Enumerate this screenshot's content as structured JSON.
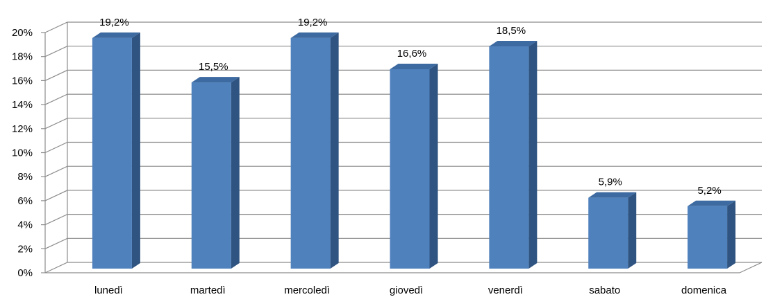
{
  "chart_data": {
    "type": "bar",
    "title": "",
    "xlabel": "",
    "ylabel": "",
    "categories": [
      "lunedì",
      "martedì",
      "mercoledì",
      "giovedì",
      "venerdì",
      "sabato",
      "domenica"
    ],
    "values": [
      19.2,
      15.5,
      19.2,
      16.6,
      18.5,
      5.9,
      5.2
    ],
    "data_labels": [
      "19,2%",
      "15,5%",
      "19,2%",
      "16,6%",
      "18,5%",
      "5,9%",
      "5,2%"
    ],
    "ylim": [
      0,
      20
    ],
    "yticks": [
      0,
      2,
      4,
      6,
      8,
      10,
      12,
      14,
      16,
      18,
      20
    ],
    "ytick_labels": [
      "0%",
      "2%",
      "4%",
      "6%",
      "8%",
      "10%",
      "12%",
      "14%",
      "16%",
      "18%",
      "20%"
    ],
    "grid": true,
    "legend": "none",
    "style": "3d-column",
    "colors": {
      "bar_front": "#4F81BD",
      "bar_side": "#2F5481",
      "bar_top": "#3D6AA0",
      "grid": "#8C8C8C",
      "axis": "#8C8C8C"
    }
  }
}
